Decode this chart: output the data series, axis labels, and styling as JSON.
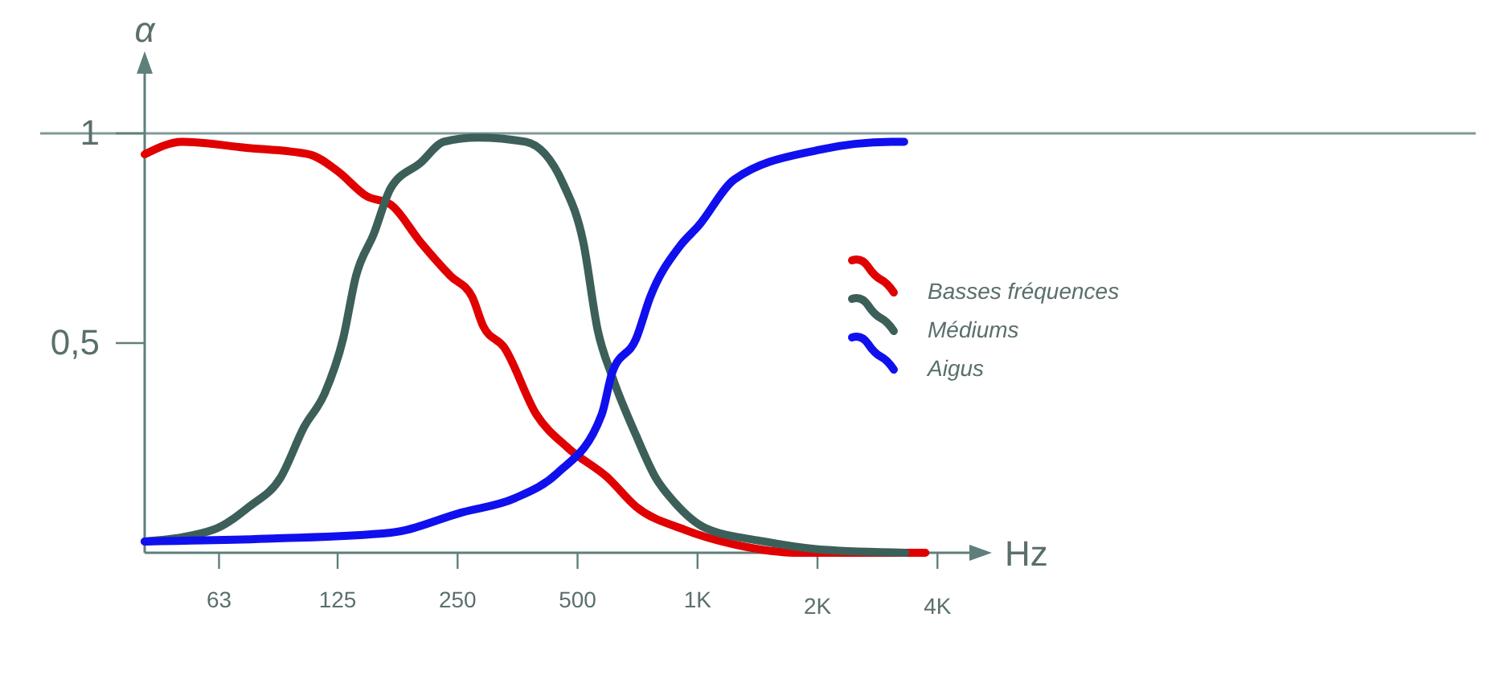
{
  "chart_data": {
    "type": "line",
    "xlabel": "Hz",
    "ylabel": "α",
    "log": "x",
    "xlim": [
      41,
      4900
    ],
    "xticks": [
      {
        "value": 63,
        "label": "63"
      },
      {
        "value": 125,
        "label": "125"
      },
      {
        "value": 250,
        "label": "250"
      },
      {
        "value": 500,
        "label": "500"
      },
      {
        "value": 1000,
        "label": "1K"
      },
      {
        "value": 2000,
        "label": "2K"
      },
      {
        "value": 4000,
        "label": "4K"
      }
    ],
    "ylim": [
      0,
      1.15
    ],
    "yticks": [
      {
        "value": 0.5,
        "label": "0,5"
      },
      {
        "value": 1,
        "label": "1"
      }
    ],
    "ref_lines": [
      {
        "axis": "y",
        "value": 1,
        "color": "#7f9a96"
      }
    ],
    "legend": "right",
    "marker": "none",
    "line_style": "solid",
    "series": [
      {
        "name": "Basses fréquences",
        "color": "#e00000",
        "x": [
          41,
          51,
          73,
          106,
          125,
          148,
          170,
          202,
          240,
          272,
          290,
          327,
          394,
          473,
          594,
          701,
          928,
          1237,
          1805,
          3730
        ],
        "values": [
          0.95,
          0.98,
          0.966,
          0.95,
          0.91,
          0.85,
          0.83,
          0.74,
          0.66,
          0.61,
          0.54,
          0.49,
          0.33,
          0.25,
          0.18,
          0.11,
          0.055,
          0.02,
          0,
          0
        ]
      },
      {
        "name": "Médiums",
        "color": "#3d5f5a",
        "x": [
          41,
          61,
          75,
          90,
          103,
          116,
          129,
          139,
          154,
          170,
          202,
          231,
          281,
          370,
          460,
          517,
          562,
          611,
          701,
          784,
          876,
          1042,
          1468,
          2079,
          3320
        ],
        "values": [
          0.027,
          0.055,
          0.11,
          0.18,
          0.3,
          0.38,
          0.51,
          0.66,
          0.76,
          0.87,
          0.93,
          0.98,
          0.99,
          0.98,
          0.88,
          0.74,
          0.53,
          0.42,
          0.28,
          0.18,
          0.12,
          0.06,
          0.027,
          0.007,
          0
        ]
      },
      {
        "name": "Aigus",
        "color": "#1010ee",
        "x": [
          41,
          86,
          170,
          256,
          348,
          445,
          575,
          611,
          701,
          761,
          901,
          1007,
          1237,
          2000,
          3070,
          3300
        ],
        "values": [
          0.027,
          0.034,
          0.048,
          0.096,
          0.13,
          0.19,
          0.33,
          0.43,
          0.51,
          0.61,
          0.73,
          0.78,
          0.89,
          0.96,
          0.98,
          0.98
        ]
      }
    ]
  }
}
